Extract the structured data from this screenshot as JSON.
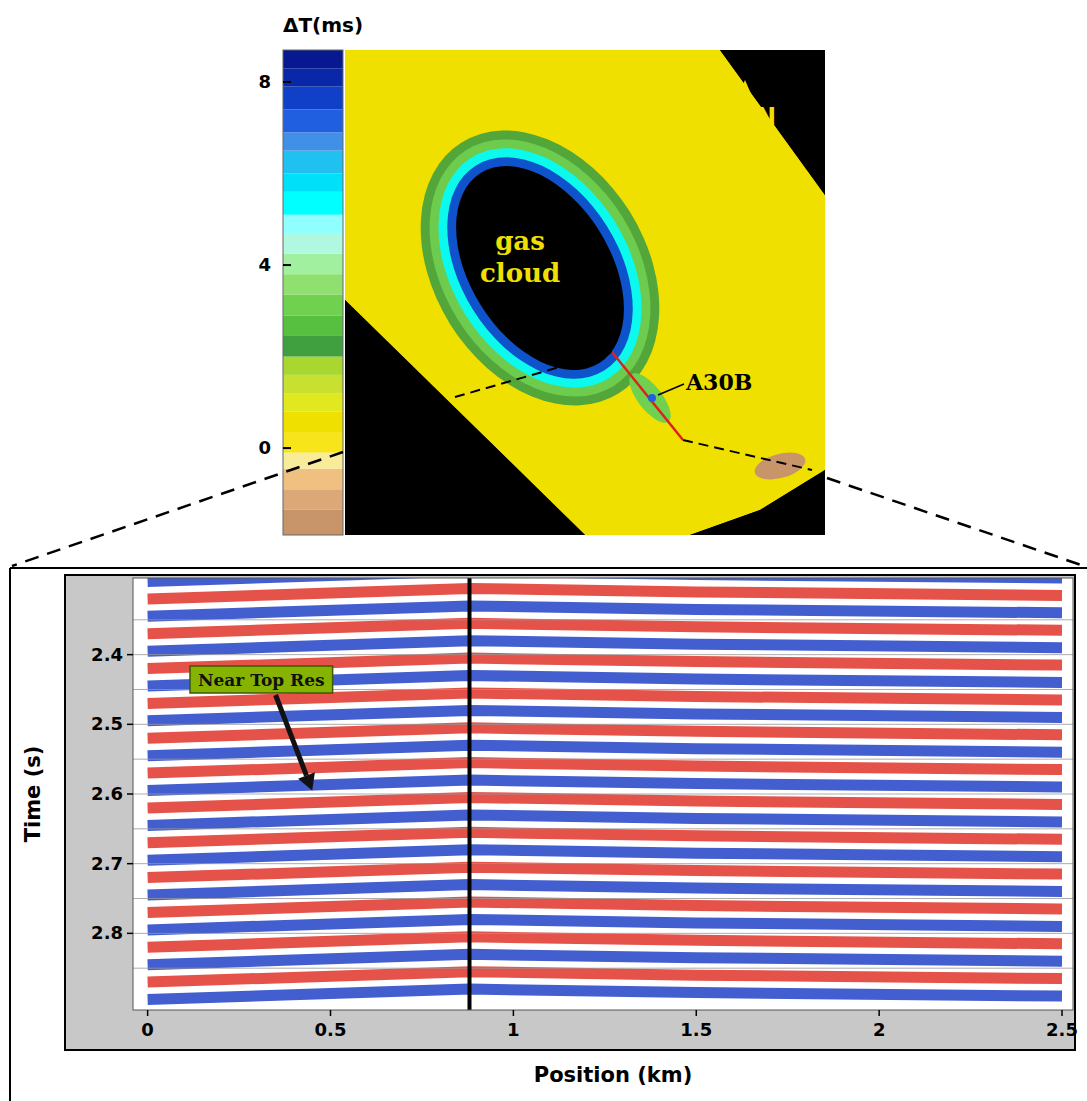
{
  "chart_data": [
    {
      "type": "map",
      "colorbar": {
        "label": "ΔT(ms)",
        "clim": [
          -1.9,
          8.7
        ],
        "ticks": [
          0,
          4,
          8
        ],
        "bands": [
          {
            "from": -1.9,
            "to": -1.35,
            "color": "#c8956a"
          },
          {
            "from": -1.35,
            "to": -0.9,
            "color": "#dca878"
          },
          {
            "from": -0.9,
            "to": -0.45,
            "color": "#f0c080"
          },
          {
            "from": -0.45,
            "to": -0.1,
            "color": "#f8ec98"
          },
          {
            "from": -0.1,
            "to": 0.35,
            "color": "#f8e41a"
          },
          {
            "from": 0.35,
            "to": 0.8,
            "color": "#f0e000"
          },
          {
            "from": 0.8,
            "to": 1.2,
            "color": "#e0e820"
          },
          {
            "from": 1.2,
            "to": 1.6,
            "color": "#c8e030"
          },
          {
            "from": 1.6,
            "to": 2.0,
            "color": "#a8d830"
          },
          {
            "from": 2.0,
            "to": 2.45,
            "color": "#40a040"
          },
          {
            "from": 2.45,
            "to": 2.9,
            "color": "#58c040"
          },
          {
            "from": 2.9,
            "to": 3.35,
            "color": "#70d050"
          },
          {
            "from": 3.35,
            "to": 3.8,
            "color": "#90e070"
          },
          {
            "from": 3.8,
            "to": 4.25,
            "color": "#a0f0a0"
          },
          {
            "from": 4.25,
            "to": 4.7,
            "color": "#b0f8e0"
          },
          {
            "from": 4.7,
            "to": 5.1,
            "color": "#90ffff"
          },
          {
            "from": 5.1,
            "to": 5.6,
            "color": "#00ffff"
          },
          {
            "from": 5.6,
            "to": 6.0,
            "color": "#00e0f8"
          },
          {
            "from": 6.0,
            "to": 6.5,
            "color": "#20c0f0"
          },
          {
            "from": 6.5,
            "to": 6.9,
            "color": "#4090e8"
          },
          {
            "from": 6.9,
            "to": 7.4,
            "color": "#2060e0"
          },
          {
            "from": 7.4,
            "to": 7.9,
            "color": "#1040c8"
          },
          {
            "from": 7.9,
            "to": 8.3,
            "color": "#0828a8"
          },
          {
            "from": 8.3,
            "to": 8.7,
            "color": "#081890"
          }
        ]
      },
      "background_dt": 0.5,
      "halo_dt": [
        2.2,
        3.2,
        5.3,
        7.6
      ],
      "well_patch_dt": 3.0,
      "well_dot_dt": 7.0,
      "edge_patch_dt": -1.6,
      "cloud_label": "gas cloud",
      "north_label": "N",
      "well_label": "A30B"
    },
    {
      "type": "seismic",
      "xlabel": "Position (km)",
      "ylabel": "Time (s)",
      "xlim": [
        -0.04,
        2.53
      ],
      "ylim": [
        2.29,
        2.91
      ],
      "xticks": [
        0,
        0.5,
        1,
        1.5,
        2,
        2.5
      ],
      "yticks": [
        2.4,
        2.5,
        2.6,
        2.7,
        2.8
      ],
      "minor_yticks": [
        2.35,
        2.45,
        2.55,
        2.65,
        2.75,
        2.85
      ],
      "grid": true,
      "well_position": 0.88,
      "annotations": [
        {
          "text": "Near Top Res",
          "x": 0.45,
          "y": 2.595
        }
      ],
      "horizons": [
        {
          "color": "#2848c8",
          "x": [
            0,
            0.88,
            1.5,
            2.5
          ],
          "values": [
            2.295,
            2.28,
            2.285,
            2.29
          ]
        },
        {
          "color": "#e03a30",
          "x": [
            0,
            0.88,
            1.5,
            2.5
          ],
          "values": [
            2.32,
            2.305,
            2.31,
            2.315
          ]
        },
        {
          "color": "#2848c8",
          "x": [
            0,
            0.88,
            1.5,
            2.5
          ],
          "values": [
            2.345,
            2.33,
            2.335,
            2.34
          ]
        },
        {
          "color": "#e03a30",
          "x": [
            0,
            0.88,
            1.5,
            2.5
          ],
          "values": [
            2.37,
            2.355,
            2.36,
            2.365
          ]
        },
        {
          "color": "#2848c8",
          "x": [
            0,
            0.88,
            1.5,
            2.5
          ],
          "values": [
            2.395,
            2.38,
            2.385,
            2.39
          ]
        },
        {
          "color": "#e03a30",
          "x": [
            0,
            0.88,
            1.5,
            2.5
          ],
          "values": [
            2.42,
            2.405,
            2.41,
            2.415
          ]
        },
        {
          "color": "#2848c8",
          "x": [
            0,
            0.88,
            1.5,
            2.5
          ],
          "values": [
            2.445,
            2.43,
            2.435,
            2.44
          ]
        },
        {
          "color": "#e03a30",
          "x": [
            0,
            0.88,
            1.5,
            2.5
          ],
          "values": [
            2.47,
            2.455,
            2.46,
            2.465
          ]
        },
        {
          "color": "#2848c8",
          "x": [
            0,
            0.88,
            1.5,
            2.5
          ],
          "values": [
            2.495,
            2.48,
            2.485,
            2.49
          ]
        },
        {
          "color": "#e03a30",
          "x": [
            0,
            0.88,
            1.5,
            2.5
          ],
          "values": [
            2.52,
            2.505,
            2.51,
            2.515
          ]
        },
        {
          "color": "#2848c8",
          "x": [
            0,
            0.88,
            1.5,
            2.5
          ],
          "values": [
            2.545,
            2.53,
            2.535,
            2.54
          ]
        },
        {
          "color": "#e03a30",
          "x": [
            0,
            0.88,
            1.5,
            2.5
          ],
          "values": [
            2.57,
            2.555,
            2.56,
            2.565
          ]
        },
        {
          "color": "#2848c8",
          "x": [
            0,
            0.88,
            1.5,
            2.5
          ],
          "values": [
            2.595,
            2.58,
            2.585,
            2.59
          ]
        },
        {
          "color": "#e03a30",
          "x": [
            0,
            0.88,
            1.5,
            2.5
          ],
          "values": [
            2.62,
            2.605,
            2.61,
            2.615
          ]
        },
        {
          "color": "#2848c8",
          "x": [
            0,
            0.88,
            1.5,
            2.5
          ],
          "values": [
            2.645,
            2.63,
            2.635,
            2.64
          ]
        },
        {
          "color": "#e03a30",
          "x": [
            0,
            0.88,
            1.5,
            2.5
          ],
          "values": [
            2.67,
            2.655,
            2.66,
            2.665
          ]
        },
        {
          "color": "#2848c8",
          "x": [
            0,
            0.88,
            1.5,
            2.5
          ],
          "values": [
            2.695,
            2.68,
            2.685,
            2.69
          ]
        },
        {
          "color": "#e03a30",
          "x": [
            0,
            0.88,
            1.5,
            2.5
          ],
          "values": [
            2.72,
            2.705,
            2.71,
            2.715
          ]
        },
        {
          "color": "#2848c8",
          "x": [
            0,
            0.88,
            1.5,
            2.5
          ],
          "values": [
            2.745,
            2.73,
            2.735,
            2.74
          ]
        },
        {
          "color": "#e03a30",
          "x": [
            0,
            0.88,
            1.5,
            2.5
          ],
          "values": [
            2.77,
            2.755,
            2.76,
            2.765
          ]
        },
        {
          "color": "#2848c8",
          "x": [
            0,
            0.88,
            1.5,
            2.5
          ],
          "values": [
            2.795,
            2.78,
            2.785,
            2.79
          ]
        },
        {
          "color": "#e03a30",
          "x": [
            0,
            0.88,
            1.5,
            2.5
          ],
          "values": [
            2.82,
            2.805,
            2.81,
            2.815
          ]
        },
        {
          "color": "#2848c8",
          "x": [
            0,
            0.88,
            1.5,
            2.5
          ],
          "values": [
            2.845,
            2.83,
            2.835,
            2.84
          ]
        },
        {
          "color": "#e03a30",
          "x": [
            0,
            0.88,
            1.5,
            2.5
          ],
          "values": [
            2.87,
            2.855,
            2.86,
            2.865
          ]
        },
        {
          "color": "#2848c8",
          "x": [
            0,
            0.88,
            1.5,
            2.5
          ],
          "values": [
            2.895,
            2.88,
            2.885,
            2.89
          ]
        }
      ]
    }
  ]
}
